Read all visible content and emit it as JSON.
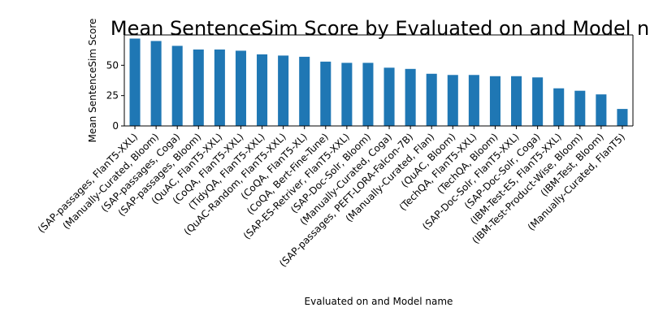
{
  "chart_data": {
    "type": "bar",
    "title": "Mean SentenceSim Score by Evaluated on and Model name",
    "xlabel": "Evaluated on and Model name",
    "ylabel": "Mean SentenceSim Score",
    "ylim": [
      0,
      75
    ],
    "yticks": [
      0,
      25,
      50
    ],
    "grid": false,
    "legend": "none",
    "bar_color": "#1f77b4",
    "categories": [
      "(SAP-passages, FlanT5-XXL)",
      "(Manually-Curated, Bloom)",
      "(SAP-passages, Coga)",
      "(SAP-passages, Bloom)",
      "(QuAC, FlanT5-XXL)",
      "(CoQA, FlanT5-XXL)",
      "(TidyQA, FlanT5-XXL)",
      "(QuAC-Random, FlanT5-XXL)",
      "(CoQA, FlanT5-XL)",
      "(CoQA, Bert-Fine-Tune)",
      "(SAP-ES-Retriver, FlanT5-XXL)",
      "(SAP-Doc-Solr, Bloom)",
      "(Manually-Curated, Coga)",
      "(SAP-passages, PEFT-LORA-Falcon-7B)",
      "(Manually-Curated, Flan)",
      "(QuAC, Bloom)",
      "(TechQA, FlanT5-XXL)",
      "(TechQA, Bloom)",
      "(SAP-Doc-Solr, FlanT5-XXL)",
      "(SAP-Doc-Solr, Coga)",
      "(IBM-Test-ES, FlanT5-XXL)",
      "(IBM-Test-Product-Wise, Bloom)",
      "(IBM-Test, Bloom)",
      "(Manually-Curated, FlanT5)"
    ],
    "values": [
      72,
      70,
      66,
      63,
      63,
      62,
      59,
      58,
      57,
      53,
      52,
      52,
      48,
      47,
      43,
      42,
      42,
      41,
      41,
      40,
      31,
      29,
      26,
      14
    ]
  }
}
